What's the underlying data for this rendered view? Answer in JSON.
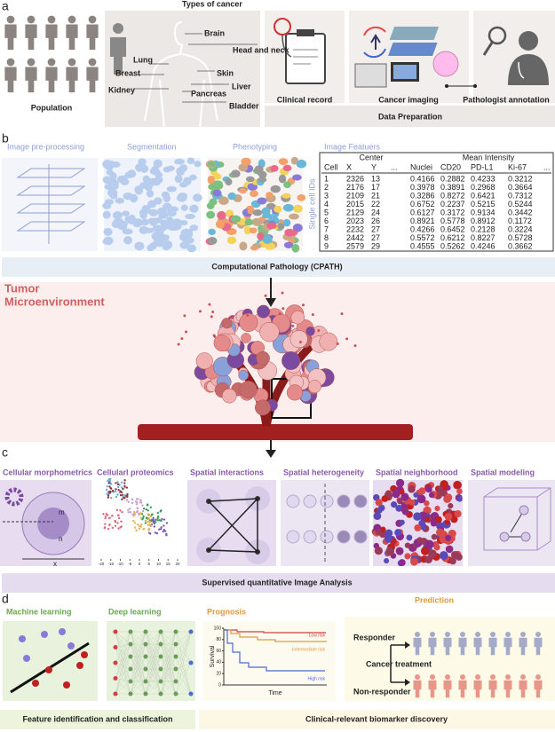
{
  "panel_a": {
    "letter": "a",
    "title": "Types of cancer",
    "population": "Population",
    "organs": [
      "Brain",
      "Head and neck",
      "Lung",
      "Breast",
      "Skin",
      "Kidney",
      "Liver",
      "Pancreas",
      "Bladder"
    ],
    "clinical": "Clinical record",
    "imaging": "Cancer imaging",
    "pathologist": "Pathologist annotation",
    "footer": "Data Preparation"
  },
  "panel_b": {
    "letter": "b",
    "steps": [
      "Image pre-processing",
      "Segmentation",
      "Phenotyping",
      "Image Featuers"
    ],
    "table": {
      "groups": [
        "Center",
        "Mean Intensity"
      ],
      "side_label": "Single cell IDs",
      "header": [
        "Cell",
        "X",
        "Y",
        "...",
        "Nuclei",
        "CD20",
        "PD-L1",
        "Ki-67",
        "..."
      ],
      "rows": [
        [
          "1",
          "2326",
          "13",
          "0.4166",
          "0.2882",
          "0.4233",
          "0.3212"
        ],
        [
          "2",
          "2176",
          "17",
          "0.3978",
          "0.3891",
          "0.2968",
          "0.3664"
        ],
        [
          "3",
          "2109",
          "21",
          "0.3286",
          "0.8272",
          "0.6421",
          "0.7312"
        ],
        [
          "4",
          "2015",
          "22",
          "0.6752",
          "0.2237",
          "0.5215",
          "0.5244"
        ],
        [
          "5",
          "2129",
          "24",
          "0.6127",
          "0.3172",
          "0.9134",
          "0.3442"
        ],
        [
          "6",
          "2023",
          "26",
          "0.8921",
          "0.5778",
          "0.8912",
          "0.1172"
        ],
        [
          "7",
          "2232",
          "27",
          "0.4266",
          "0.6452",
          "0.2128",
          "0.3224"
        ],
        [
          "8",
          "2442",
          "27",
          "0.5572",
          "0.6212",
          "0.8227",
          "0.5728"
        ],
        [
          "9",
          "2579",
          "29",
          "0.4555",
          "0.5262",
          "0.4246",
          "0.3662"
        ]
      ]
    },
    "footer": "Computational Pathology (CPATH)"
  },
  "tme": {
    "title": [
      "Tumor",
      "Microenvironment"
    ]
  },
  "panel_c": {
    "letter": "c",
    "titles": [
      "Cellular morphometrics",
      "Cellularl proteomics",
      "Spatial interactions",
      "Spatial heterogeneity",
      "Spatial neighborhood",
      "Spatial modeling"
    ],
    "morph_labels": [
      "m",
      "n",
      "x"
    ],
    "tsne_xticks": [
      -20,
      -15,
      -10,
      -5,
      0,
      5,
      10,
      15,
      20
    ],
    "footer": "Supervised quantitative Image Analysis"
  },
  "panel_d": {
    "letter": "d",
    "titles": [
      "Machine learning",
      "Deep learning",
      "Prognosis",
      "Prediction"
    ],
    "prognosis": {
      "yticks": [
        0,
        20,
        40,
        60,
        80,
        100
      ],
      "ylim": [
        0,
        100
      ],
      "ylabel": "Survival",
      "xlabel": "Time",
      "curves": [
        "Low risk",
        "Intermediate risk",
        "High risk"
      ]
    },
    "prediction": {
      "responder": "Responder",
      "treatment": "Cancer treatment",
      "non_responder": "Non-responder"
    },
    "footers": [
      "Feature identification and classification",
      "Clinical-relevant biomarker discovery"
    ]
  }
}
